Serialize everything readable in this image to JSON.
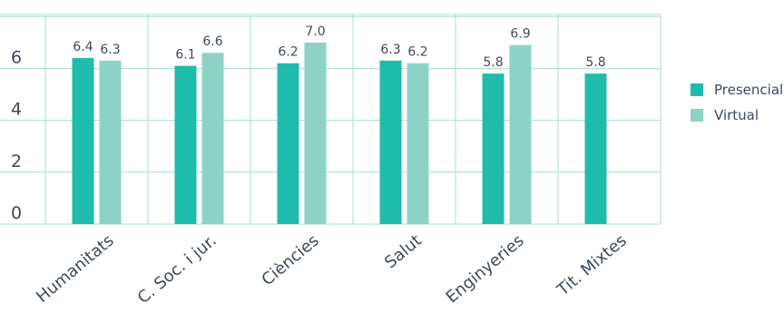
{
  "chart_data": {
    "type": "bar",
    "categories": [
      "Humanitats",
      "C. Soc. i jur.",
      "Ciències",
      "Salut",
      "Enginyeries",
      "Tit. Mixtes"
    ],
    "series": [
      {
        "name": "Presencial",
        "color": "#20bcab",
        "values": [
          6.4,
          6.1,
          6.2,
          6.3,
          5.8,
          5.8
        ],
        "labels": [
          "6.4",
          "6.1",
          "6.2",
          "6.3",
          "5.8",
          "5.8"
        ]
      },
      {
        "name": "Virtual",
        "color": "#8dd3c5",
        "values": [
          6.3,
          6.6,
          7.0,
          6.2,
          6.9,
          null
        ],
        "labels": [
          "6.3",
          "6.6",
          "7.0",
          "6.2",
          "6.9",
          ""
        ]
      }
    ],
    "yticks": [
      "0",
      "2",
      "4",
      "6"
    ],
    "ylim": [
      0,
      8
    ],
    "grid": true,
    "legend_position": "right",
    "gridColor": "#a7dcd2"
  }
}
